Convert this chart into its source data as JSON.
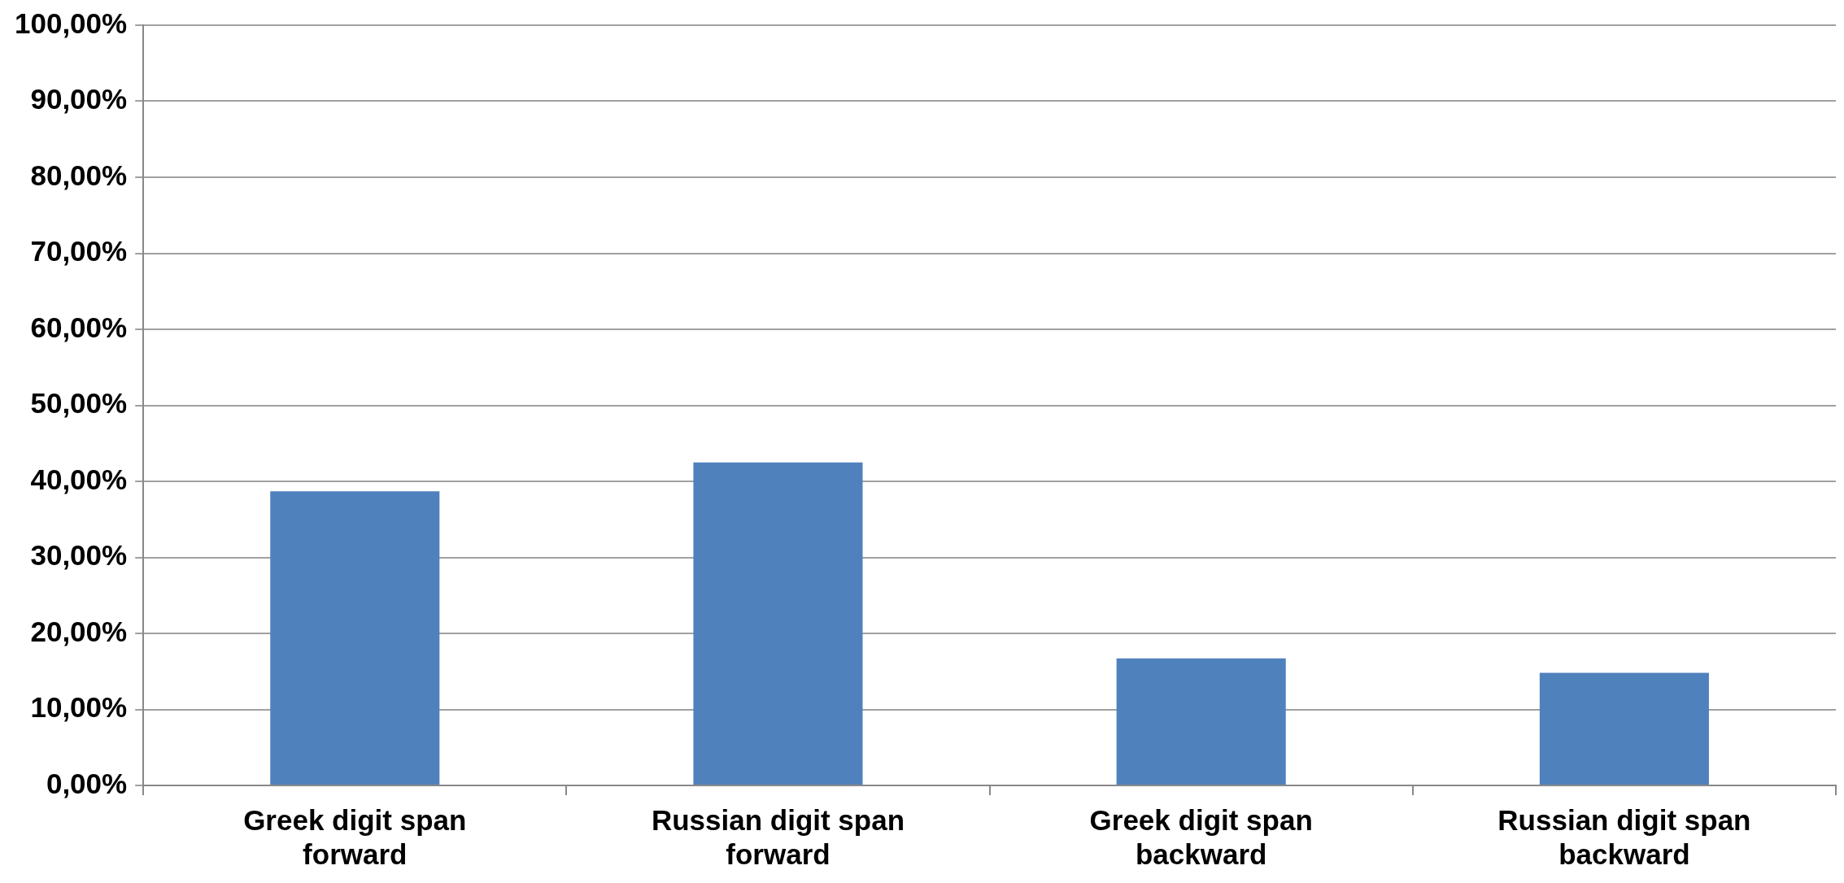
{
  "chart_data": {
    "type": "bar",
    "categories": [
      "Greek digit span forward",
      "Russian digit span forward",
      "Greek digit span backward",
      "Russian digit span backward"
    ],
    "values": [
      38.7,
      42.5,
      16.7,
      14.8
    ],
    "color": "#4f81bd",
    "ylim": [
      0,
      100
    ],
    "yticks": [
      {
        "value": 0,
        "label": "0,00%"
      },
      {
        "value": 10,
        "label": "10,00%"
      },
      {
        "value": 20,
        "label": "20,00%"
      },
      {
        "value": 30,
        "label": "30,00%"
      },
      {
        "value": 40,
        "label": "40,00%"
      },
      {
        "value": 50,
        "label": "50,00%"
      },
      {
        "value": 60,
        "label": "60,00%"
      },
      {
        "value": 70,
        "label": "70,00%"
      },
      {
        "value": 80,
        "label": "80,00%"
      },
      {
        "value": 90,
        "label": "90,00%"
      },
      {
        "value": 100,
        "label": "100,00%"
      }
    ],
    "grid": "y",
    "legend": false
  }
}
